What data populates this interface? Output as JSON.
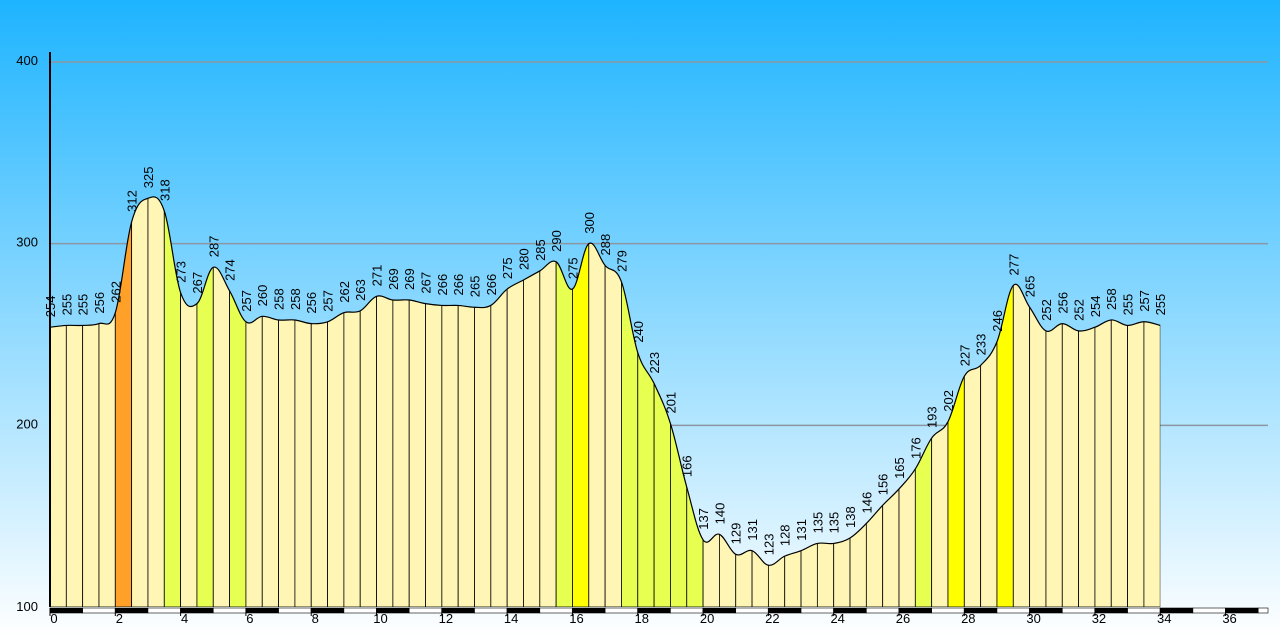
{
  "chart_data": {
    "type": "area",
    "title": "",
    "xlabel": "",
    "ylabel": "",
    "xlim": [
      0,
      37.3
    ],
    "ylim": [
      100,
      400
    ],
    "y_ticks": [
      100,
      200,
      300,
      400
    ],
    "x_ticks": [
      0,
      2,
      4,
      6,
      8,
      10,
      12,
      14,
      16,
      18,
      20,
      22,
      24,
      26,
      28,
      30,
      32,
      34,
      36
    ],
    "grid": "horizontal",
    "legend": "none",
    "segment_width_km": 0.5,
    "colors": {
      "sky_top": "#1eb4ff",
      "sky_bottom": "#ffffff",
      "flat": "#fff5b4",
      "light_green": "#e6ff50",
      "yellow": "#ffff00",
      "orange": "#ffa028",
      "grid": "#8c96a0"
    },
    "points": [
      {
        "x": 0.0,
        "y": 254
      },
      {
        "x": 0.5,
        "y": 255
      },
      {
        "x": 1.0,
        "y": 255
      },
      {
        "x": 1.5,
        "y": 256
      },
      {
        "x": 2.0,
        "y": 262
      },
      {
        "x": 2.5,
        "y": 312
      },
      {
        "x": 3.0,
        "y": 325
      },
      {
        "x": 3.5,
        "y": 318
      },
      {
        "x": 4.0,
        "y": 273
      },
      {
        "x": 4.5,
        "y": 267
      },
      {
        "x": 5.0,
        "y": 287
      },
      {
        "x": 5.5,
        "y": 274
      },
      {
        "x": 6.0,
        "y": 257
      },
      {
        "x": 6.5,
        "y": 260
      },
      {
        "x": 7.0,
        "y": 258
      },
      {
        "x": 7.5,
        "y": 258
      },
      {
        "x": 8.0,
        "y": 256
      },
      {
        "x": 8.5,
        "y": 257
      },
      {
        "x": 9.0,
        "y": 262
      },
      {
        "x": 9.5,
        "y": 263
      },
      {
        "x": 10.0,
        "y": 271
      },
      {
        "x": 10.5,
        "y": 269
      },
      {
        "x": 11.0,
        "y": 269
      },
      {
        "x": 11.5,
        "y": 267
      },
      {
        "x": 12.0,
        "y": 266
      },
      {
        "x": 12.5,
        "y": 266
      },
      {
        "x": 13.0,
        "y": 265
      },
      {
        "x": 13.5,
        "y": 266
      },
      {
        "x": 14.0,
        "y": 275
      },
      {
        "x": 14.5,
        "y": 280
      },
      {
        "x": 15.0,
        "y": 285
      },
      {
        "x": 15.5,
        "y": 290
      },
      {
        "x": 16.0,
        "y": 275
      },
      {
        "x": 16.5,
        "y": 300
      },
      {
        "x": 17.0,
        "y": 288
      },
      {
        "x": 17.5,
        "y": 279
      },
      {
        "x": 18.0,
        "y": 240
      },
      {
        "x": 18.5,
        "y": 223
      },
      {
        "x": 19.0,
        "y": 201
      },
      {
        "x": 19.5,
        "y": 166
      },
      {
        "x": 20.0,
        "y": 137
      },
      {
        "x": 20.5,
        "y": 140
      },
      {
        "x": 21.0,
        "y": 129
      },
      {
        "x": 21.5,
        "y": 131
      },
      {
        "x": 22.0,
        "y": 123
      },
      {
        "x": 22.5,
        "y": 128
      },
      {
        "x": 23.0,
        "y": 131
      },
      {
        "x": 23.5,
        "y": 135
      },
      {
        "x": 24.0,
        "y": 135
      },
      {
        "x": 24.5,
        "y": 138
      },
      {
        "x": 25.0,
        "y": 146
      },
      {
        "x": 25.5,
        "y": 156
      },
      {
        "x": 26.0,
        "y": 165
      },
      {
        "x": 26.5,
        "y": 176
      },
      {
        "x": 27.0,
        "y": 193
      },
      {
        "x": 27.5,
        "y": 202
      },
      {
        "x": 28.0,
        "y": 227
      },
      {
        "x": 28.5,
        "y": 233
      },
      {
        "x": 29.0,
        "y": 246
      },
      {
        "x": 29.5,
        "y": 277
      },
      {
        "x": 30.0,
        "y": 265
      },
      {
        "x": 30.5,
        "y": 252
      },
      {
        "x": 31.0,
        "y": 256
      },
      {
        "x": 31.5,
        "y": 252
      },
      {
        "x": 32.0,
        "y": 254
      },
      {
        "x": 32.5,
        "y": 258
      },
      {
        "x": 33.0,
        "y": 255
      },
      {
        "x": 33.5,
        "y": 257
      },
      {
        "x": 34.0,
        "y": 255
      }
    ]
  }
}
